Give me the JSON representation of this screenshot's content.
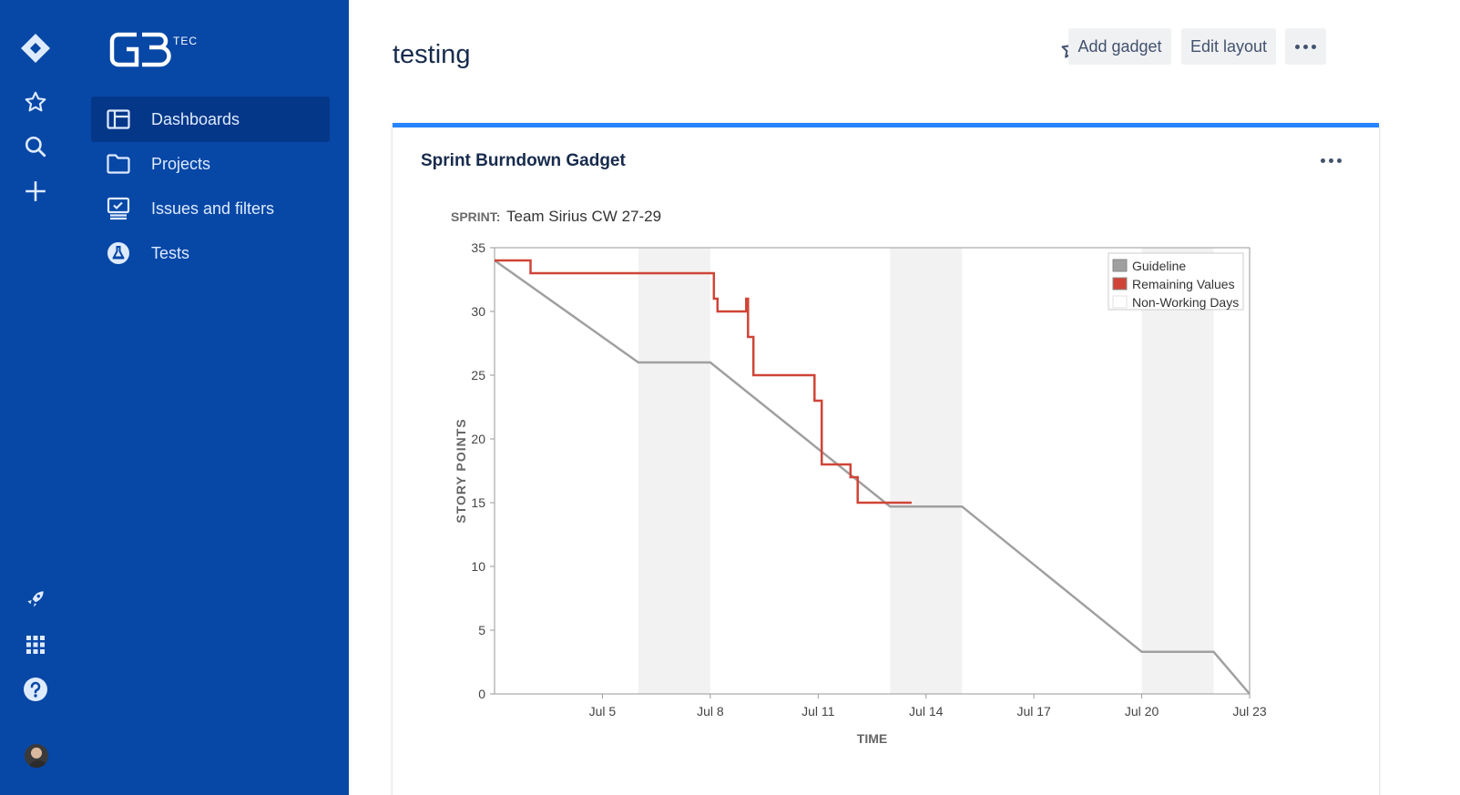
{
  "nav": {
    "items": [
      {
        "icon": "jira-logo-icon"
      },
      {
        "icon": "star-icon"
      },
      {
        "icon": "search-icon"
      },
      {
        "icon": "plus-icon"
      },
      {
        "icon": "rocket-icon"
      },
      {
        "icon": "app-switcher-icon"
      },
      {
        "icon": "help-icon"
      }
    ]
  },
  "sidebar": {
    "logo_text": "TEC",
    "items": [
      {
        "label": "Dashboards",
        "icon": "dashboard-icon",
        "active": true
      },
      {
        "label": "Projects",
        "icon": "folder-icon",
        "active": false
      },
      {
        "label": "Issues and filters",
        "icon": "issues-icon",
        "active": false
      },
      {
        "label": "Tests",
        "icon": "flask-icon",
        "active": false
      }
    ]
  },
  "header": {
    "title": "testing",
    "add_gadget": "Add gadget",
    "edit_layout": "Edit layout"
  },
  "gadget": {
    "title": "Sprint Burndown Gadget",
    "sprint_label": "SPRINT:",
    "sprint_name": "Team Sirius CW 27-29"
  },
  "colors": {
    "guideline": "#a0a0a0",
    "remaining": "#d04437",
    "nonworking": "#f2f2f2",
    "accent": "#2684ff",
    "sidebar": "#0747a6"
  },
  "chart_data": {
    "type": "line",
    "xlabel": "TIME",
    "ylabel": "STORY POINTS",
    "ylim": [
      0,
      35
    ],
    "xlim": [
      "Jul 2",
      "Jul 23"
    ],
    "yticks": [
      0,
      5,
      10,
      15,
      20,
      25,
      30,
      35
    ],
    "xticks": [
      "Jul 5",
      "Jul 8",
      "Jul 11",
      "Jul 14",
      "Jul 17",
      "Jul 20",
      "Jul 23"
    ],
    "legend_position": "top-right",
    "legend": [
      "Guideline",
      "Remaining Values",
      "Non-Working Days"
    ],
    "non_working_days": [
      [
        "Jul 6",
        "Jul 8"
      ],
      [
        "Jul 13",
        "Jul 15"
      ],
      [
        "Jul 20",
        "Jul 22"
      ]
    ],
    "series": [
      {
        "name": "Guideline",
        "points": [
          [
            "Jul 2",
            34
          ],
          [
            "Jul 6",
            26
          ],
          [
            "Jul 8",
            26
          ],
          [
            "Jul 13",
            14.7
          ],
          [
            "Jul 15",
            14.7
          ],
          [
            "Jul 20",
            3.3
          ],
          [
            "Jul 22",
            3.3
          ],
          [
            "Jul 23",
            0
          ]
        ]
      },
      {
        "name": "Remaining Values",
        "points": [
          [
            "Jul 2",
            34
          ],
          [
            "Jul 3",
            34
          ],
          [
            "Jul 3",
            33
          ],
          [
            "Jul 8.1",
            33
          ],
          [
            "Jul 8.1",
            31
          ],
          [
            "Jul 8.2",
            31
          ],
          [
            "Jul 8.2",
            30
          ],
          [
            "Jul 9",
            30
          ],
          [
            "Jul 9",
            31
          ],
          [
            "Jul 9.05",
            31
          ],
          [
            "Jul 9.05",
            28
          ],
          [
            "Jul 9.2",
            28
          ],
          [
            "Jul 9.2",
            25
          ],
          [
            "Jul 10.9",
            25
          ],
          [
            "Jul 10.9",
            23
          ],
          [
            "Jul 11.1",
            23
          ],
          [
            "Jul 11.1",
            18
          ],
          [
            "Jul 11.9",
            18
          ],
          [
            "Jul 11.9",
            17
          ],
          [
            "Jul 12.1",
            17
          ],
          [
            "Jul 12.1",
            15
          ],
          [
            "Jul 13.6",
            15
          ]
        ]
      }
    ]
  }
}
